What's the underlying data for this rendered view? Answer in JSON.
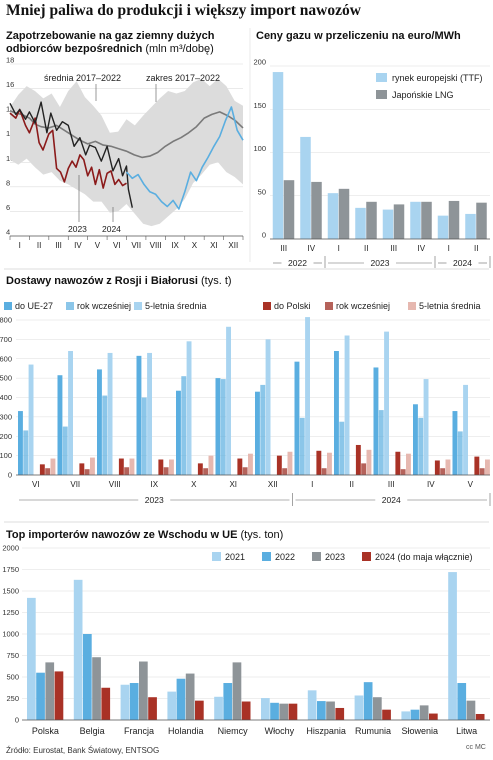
{
  "page": {
    "title": "Mniej paliwa do produkcji i większy import nawozów",
    "source": "Źródło: Eurostat, Bank Światowy, ENTSOG",
    "logo_text": "cc MC"
  },
  "colors": {
    "range": "#dcdcdc",
    "avg": "#7a7a7a",
    "y2023": "#8b1a1a",
    "y2024": "#222222",
    "last": "#5aaee0",
    "lightblue": "#a9d4f0",
    "blue": "#5aaee0",
    "gray": "#8e9498",
    "red": "#a93226",
    "brown": "#b5625a",
    "pink": "#e6b8b0"
  },
  "chart_data": [
    {
      "type": "line",
      "title": "Zapotrzebowanie na gaz ziemny dużych odbiorców bezpośrednich",
      "unit": "(mln m³/dobę)",
      "x_ticks": [
        "I",
        "II",
        "III",
        "IV",
        "V",
        "VI",
        "VII",
        "VIII",
        "IX",
        "X",
        "XI",
        "XII"
      ],
      "ylim": [
        4,
        18
      ],
      "y_ticks": [
        4,
        6,
        8,
        10,
        12,
        14,
        16,
        18
      ],
      "annotations": [
        "średnia 2017–2022",
        "zakres 2017–2022",
        "2023",
        "2024"
      ],
      "range_upper": [
        14.5,
        15.5,
        16.2,
        15.8,
        15.2,
        15.6,
        14.5,
        15.8,
        16.6,
        15.3,
        14.6,
        13.8,
        12.4,
        12.5,
        13.5,
        13.0,
        13.8,
        14.5,
        15.2,
        15.8,
        15.6,
        15.8,
        16.5,
        16.8,
        16.2,
        16.8,
        16.2,
        15.0,
        14.6
      ],
      "range_lower": [
        10.2,
        9.8,
        10.3,
        9.6,
        9.0,
        9.2,
        8.5,
        8.2,
        7.8,
        7.4,
        6.8,
        6.8,
        5.9,
        6.0,
        6.6,
        5.8,
        5.0,
        4.8,
        5.0,
        5.6,
        6.2,
        7.0,
        8.3,
        9.0,
        9.8,
        10.0,
        9.2,
        8.8,
        8.2
      ],
      "series": [
        {
          "name": "średnia 2017–2022",
          "x": [
            0.0,
            0.3,
            0.6,
            1.0,
            1.3,
            1.6,
            2.0,
            2.4,
            2.8,
            3.2,
            3.6,
            4.0,
            4.4,
            4.8,
            5.2,
            5.6,
            6.0,
            6.4,
            6.8,
            7.2,
            7.6,
            8.0,
            8.4,
            8.8,
            9.2,
            9.6,
            10.0,
            10.4,
            10.8,
            11.2,
            11.6,
            12.0
          ],
          "values": [
            14.2,
            14.0,
            13.9,
            13.6,
            13.1,
            12.9,
            12.8,
            13.0,
            12.6,
            12.2,
            11.8,
            11.5,
            11.7,
            11.4,
            11.3,
            11.1,
            10.9,
            10.6,
            10.4,
            10.5,
            10.8,
            11.3,
            11.7,
            12.0,
            12.4,
            12.9,
            13.6,
            13.9,
            14.1,
            13.8,
            13.4,
            12.8
          ]
        },
        {
          "name": "2023",
          "x": [
            0.0,
            0.3,
            0.5,
            0.8,
            1.0,
            1.3,
            1.5,
            1.7,
            2.0,
            2.2,
            2.4,
            2.6,
            2.8,
            3.0,
            3.2,
            3.4,
            3.6,
            3.8,
            4.0,
            4.2,
            4.4,
            4.6,
            4.8,
            5.0,
            5.2,
            5.4,
            5.6,
            5.8,
            6.0
          ],
          "values": [
            14.0,
            13.6,
            14.3,
            13.0,
            12.4,
            13.6,
            11.6,
            11.0,
            12.3,
            12.6,
            9.5,
            9.2,
            8.4,
            9.5,
            10.1,
            9.6,
            10.6,
            10.2,
            8.9,
            9.6,
            8.2,
            9.4,
            7.9,
            9.1,
            9.3,
            8.2,
            8.6,
            8.1,
            8.3
          ]
        },
        {
          "name": "2024",
          "x": [
            0.0,
            0.3,
            0.5,
            0.8,
            1.0,
            1.3,
            1.6,
            1.9,
            2.1,
            2.4,
            2.7,
            3.0,
            3.3,
            3.6,
            3.9,
            4.1,
            4.4,
            4.7,
            5.0,
            5.3,
            5.6,
            5.8,
            6.0,
            6.1,
            6.3
          ],
          "values": [
            14.8,
            13.9,
            14.3,
            13.5,
            14.1,
            13.2,
            14.9,
            12.4,
            14.0,
            12.6,
            13.3,
            13.0,
            11.3,
            12.0,
            10.6,
            11.4,
            11.2,
            10.1,
            11.3,
            9.3,
            10.3,
            8.9,
            9.7,
            7.8,
            6.3
          ]
        },
        {
          "name": "2022",
          "x": [
            6.0,
            6.3,
            6.6,
            6.9,
            7.2,
            7.5,
            7.8,
            8.1,
            8.4,
            8.7,
            9.0,
            9.3,
            9.6,
            9.9,
            10.2,
            10.5,
            10.8,
            11.1,
            11.4,
            11.7,
            12.0
          ],
          "values": [
            9.2,
            8.7,
            9.0,
            8.2,
            7.6,
            7.4,
            6.8,
            6.4,
            6.9,
            6.2,
            7.6,
            9.2,
            8.5,
            9.6,
            10.4,
            11.3,
            12.1,
            13.4,
            14.5,
            12.6,
            11.8
          ]
        }
      ]
    },
    {
      "type": "bar",
      "title": "Ceny gazu w przeliczeniu na euro/MWh",
      "ylim": [
        0,
        200
      ],
      "y_ticks": [
        0,
        50,
        100,
        150,
        200
      ],
      "categories": [
        "III",
        "IV",
        "I",
        "II",
        "III",
        "IV",
        "I",
        "II"
      ],
      "groups": [
        {
          "label": "2022",
          "from": 0,
          "to": 1
        },
        {
          "label": "2023",
          "from": 2,
          "to": 5
        },
        {
          "label": "2024",
          "from": 6,
          "to": 7
        }
      ],
      "series": [
        {
          "name": "rynek europejski (TTF)",
          "values": [
            193,
            118,
            53,
            36,
            34,
            43,
            27,
            29
          ]
        },
        {
          "name": "Japońskie LNG",
          "values": [
            68,
            66,
            58,
            43,
            40,
            43,
            44,
            42
          ]
        }
      ]
    },
    {
      "type": "bar",
      "title": "Dostawy nawozów z Rosji i Białorusi",
      "unit": "(tys. t)",
      "ylim": [
        0,
        800
      ],
      "y_ticks": [
        0,
        100,
        200,
        300,
        400,
        500,
        600,
        700,
        800
      ],
      "categories": [
        "VI",
        "VII",
        "VIII",
        "IX",
        "X",
        "XI",
        "XII",
        "I",
        "II",
        "III",
        "IV",
        "V"
      ],
      "groups": [
        {
          "label": "2023",
          "from": 0,
          "to": 6
        },
        {
          "label": "2024",
          "from": 7,
          "to": 11
        }
      ],
      "series": [
        {
          "name": "do UE-27",
          "values": [
            330,
            515,
            545,
            615,
            435,
            500,
            430,
            585,
            640,
            555,
            365,
            330
          ]
        },
        {
          "name": "rok wcześniej",
          "values": [
            230,
            250,
            410,
            400,
            510,
            495,
            465,
            295,
            275,
            335,
            295,
            225
          ]
        },
        {
          "name": "5-letnia średnia",
          "values": [
            570,
            640,
            630,
            630,
            690,
            765,
            700,
            815,
            720,
            740,
            495,
            465
          ]
        },
        {
          "name": "do Polski",
          "values": [
            55,
            60,
            85,
            80,
            60,
            85,
            100,
            125,
            155,
            120,
            75,
            95
          ]
        },
        {
          "name": "rok wcześniej",
          "values": [
            35,
            30,
            40,
            40,
            35,
            40,
            35,
            35,
            60,
            30,
            35,
            35
          ]
        },
        {
          "name": "5-letnia średnia",
          "values": [
            85,
            90,
            85,
            80,
            100,
            110,
            120,
            115,
            130,
            110,
            80,
            80
          ]
        }
      ]
    },
    {
      "type": "bar",
      "title": "Top importerów nawozów ze Wschodu w UE",
      "unit": "(tys. ton)",
      "ylim": [
        0,
        2000
      ],
      "y_ticks": [
        0,
        250,
        500,
        750,
        1000,
        1250,
        1500,
        1750,
        2000
      ],
      "categories": [
        "Polska",
        "Belgia",
        "Francja",
        "Holandia",
        "Niemcy",
        "Włochy",
        "Hiszpania",
        "Rumunia",
        "Słowenia",
        "Litwa"
      ],
      "series": [
        {
          "name": "2021",
          "values": [
            1420,
            1630,
            410,
            330,
            270,
            255,
            345,
            285,
            100,
            1720
          ]
        },
        {
          "name": "2022",
          "values": [
            550,
            1000,
            430,
            480,
            430,
            200,
            220,
            440,
            120,
            430
          ]
        },
        {
          "name": "2023",
          "values": [
            670,
            730,
            680,
            540,
            670,
            190,
            215,
            265,
            170,
            225
          ]
        },
        {
          "name": "2024 (do maja włącznie)",
          "values": [
            565,
            375,
            265,
            225,
            215,
            190,
            140,
            120,
            75,
            70
          ]
        }
      ]
    }
  ]
}
